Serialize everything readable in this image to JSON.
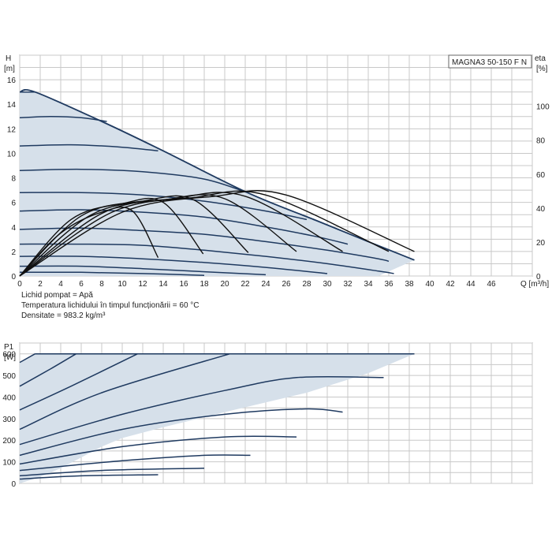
{
  "chart_data": [
    {
      "type": "line",
      "model_label": "MAGNA3 50-150 F N",
      "ylabel_lines": [
        "H",
        "[m]"
      ],
      "y2label_lines": [
        "eta",
        "[%]"
      ],
      "xlabel": "Q [m³/h]",
      "xlim": [
        0,
        50
      ],
      "ylim": [
        0,
        18
      ],
      "y2lim": [
        0,
        130
      ],
      "x_ticks": [
        0,
        2,
        4,
        6,
        8,
        10,
        12,
        14,
        16,
        18,
        20,
        22,
        24,
        26,
        28,
        30,
        32,
        34,
        36,
        38,
        40,
        42,
        44,
        46
      ],
      "y_ticks": [
        0,
        2,
        4,
        6,
        8,
        10,
        12,
        14,
        16
      ],
      "y2_ticks": [
        0,
        20,
        40,
        60,
        80,
        100
      ],
      "grid": true,
      "notes": [
        "Lichid pompat = Apă",
        "Temperatura lichidului în timpul funcționării = 60 °C",
        "Densitate = 983.2 kg/m³"
      ],
      "envelope": [
        [
          0,
          15
        ],
        [
          1.5,
          15
        ],
        [
          8,
          12.6
        ],
        [
          14,
          10.2
        ],
        [
          22.2,
          6.8
        ],
        [
          29,
          4.5
        ],
        [
          34,
          2.8
        ],
        [
          38.5,
          1.3
        ],
        [
          35,
          0
        ],
        [
          0,
          0
        ]
      ],
      "head_curves": [
        {
          "name": "H1",
          "points": [
            [
              0,
              15
            ],
            [
              1.5,
              15
            ]
          ]
        },
        {
          "name": "H2",
          "points": [
            [
              0,
              12.9
            ],
            [
              3,
              13
            ],
            [
              6,
              12.9
            ],
            [
              8.5,
              12.6
            ]
          ]
        },
        {
          "name": "H3",
          "points": [
            [
              0,
              10.6
            ],
            [
              5,
              10.7
            ],
            [
              10,
              10.5
            ],
            [
              13.5,
              10.2
            ]
          ]
        },
        {
          "name": "H4",
          "points": [
            [
              0,
              8.6
            ],
            [
              6,
              8.7
            ],
            [
              12,
              8.5
            ],
            [
              18,
              7.9
            ],
            [
              22.2,
              6.8
            ]
          ]
        },
        {
          "name": "H5",
          "points": [
            [
              0,
              6.8
            ],
            [
              6,
              6.8
            ],
            [
              12,
              6.6
            ],
            [
              18,
              6.1
            ],
            [
              24,
              5.3
            ],
            [
              28,
              4.6
            ]
          ]
        },
        {
          "name": "H6",
          "points": [
            [
              0,
              5.3
            ],
            [
              6,
              5.4
            ],
            [
              12,
              5.2
            ],
            [
              18,
              4.8
            ],
            [
              24,
              4
            ],
            [
              29,
              3.2
            ],
            [
              32,
              2.6
            ]
          ]
        },
        {
          "name": "H7",
          "points": [
            [
              0,
              3.8
            ],
            [
              6,
              3.9
            ],
            [
              12,
              3.7
            ],
            [
              18,
              3.4
            ],
            [
              24,
              2.8
            ],
            [
              30,
              2.1
            ],
            [
              35,
              1.4
            ],
            [
              36,
              1.2
            ]
          ]
        },
        {
          "name": "H8",
          "points": [
            [
              0,
              2.6
            ],
            [
              6,
              2.6
            ],
            [
              12,
              2.5
            ],
            [
              18,
              2.1
            ],
            [
              24,
              1.6
            ],
            [
              30,
              1
            ],
            [
              35,
              0.4
            ],
            [
              36.5,
              0.2
            ]
          ]
        },
        {
          "name": "H9",
          "points": [
            [
              0,
              1.6
            ],
            [
              6,
              1.6
            ],
            [
              12,
              1.4
            ],
            [
              18,
              1.1
            ],
            [
              24,
              0.7
            ],
            [
              30,
              0.2
            ]
          ]
        },
        {
          "name": "H10",
          "points": [
            [
              0,
              0.8
            ],
            [
              6,
              0.8
            ],
            [
              12,
              0.6
            ],
            [
              18,
              0.35
            ],
            [
              24,
              0.1
            ]
          ]
        },
        {
          "name": "H11",
          "points": [
            [
              0,
              0.3
            ],
            [
              6,
              0.3
            ],
            [
              12,
              0.2
            ],
            [
              18,
              0.05
            ]
          ]
        }
      ],
      "efficiency_curves": [
        {
          "name": "E1",
          "points": [
            [
              0,
              0
            ],
            [
              4,
              3.5
            ],
            [
              8,
              5.2
            ],
            [
              11,
              5.3
            ],
            [
              13.5,
              1.5
            ]
          ]
        },
        {
          "name": "E2",
          "points": [
            [
              0,
              0
            ],
            [
              5,
              4.6
            ],
            [
              10,
              5.9
            ],
            [
              14,
              6
            ],
            [
              17.9,
              1.8
            ]
          ]
        },
        {
          "name": "E3",
          "points": [
            [
              0,
              0
            ],
            [
              6,
              4.9
            ],
            [
              12,
              6.1
            ],
            [
              17,
              6.2
            ],
            [
              22.3,
              1.9
            ]
          ]
        },
        {
          "name": "E4",
          "points": [
            [
              0,
              0
            ],
            [
              7,
              5
            ],
            [
              14,
              6.2
            ],
            [
              20,
              6.3
            ],
            [
              27,
              2
            ]
          ]
        },
        {
          "name": "E5",
          "points": [
            [
              0,
              0
            ],
            [
              8,
              5.1
            ],
            [
              15,
              6.3
            ],
            [
              22,
              6.5
            ],
            [
              31.5,
              2
            ]
          ]
        },
        {
          "name": "E6",
          "points": [
            [
              0,
              0
            ],
            [
              9,
              5.2
            ],
            [
              17,
              6.4
            ],
            [
              24,
              6.6
            ],
            [
              36,
              2
            ]
          ]
        },
        {
          "name": "E7",
          "points": [
            [
              0,
              0
            ],
            [
              10,
              5.2
            ],
            [
              19,
              6.5
            ],
            [
              26,
              6.6
            ],
            [
              38.5,
              2
            ]
          ]
        }
      ]
    },
    {
      "type": "line",
      "ylabel_lines": [
        "P1",
        "[W]"
      ],
      "xlim": [
        0,
        50
      ],
      "ylim": [
        0,
        650
      ],
      "y_ticks": [
        0,
        100,
        200,
        300,
        400,
        500,
        600
      ],
      "grid": true,
      "envelope": [
        [
          0,
          560
        ],
        [
          1.5,
          600
        ],
        [
          38.5,
          600
        ],
        [
          34,
          510
        ],
        [
          28,
          420
        ],
        [
          20,
          330
        ],
        [
          14,
          260
        ],
        [
          10,
          210
        ],
        [
          8,
          170
        ],
        [
          6,
          120
        ],
        [
          4,
          70
        ],
        [
          2,
          30
        ],
        [
          0,
          0
        ]
      ],
      "power_curves": [
        {
          "name": "P1",
          "points": [
            [
              1.5,
              600
            ],
            [
              38.5,
              600
            ]
          ]
        },
        {
          "name": "P2",
          "points": [
            [
              0,
              560
            ],
            [
              1.5,
              600
            ]
          ]
        },
        {
          "name": "P3",
          "points": [
            [
              0,
              450
            ],
            [
              3,
              530
            ],
            [
              5.5,
              600
            ]
          ]
        },
        {
          "name": "P4",
          "points": [
            [
              0,
              340
            ],
            [
              5,
              450
            ],
            [
              11.5,
              600
            ]
          ]
        },
        {
          "name": "P5",
          "points": [
            [
              0,
              250
            ],
            [
              8,
              420
            ],
            [
              20.5,
              600
            ]
          ]
        },
        {
          "name": "P6",
          "points": [
            [
              0,
              180
            ],
            [
              10,
              320
            ],
            [
              20,
              430
            ],
            [
              27,
              490
            ],
            [
              35.5,
              490
            ]
          ]
        },
        {
          "name": "P7",
          "points": [
            [
              0,
              130
            ],
            [
              10,
              250
            ],
            [
              20,
              320
            ],
            [
              28,
              345
            ],
            [
              31.5,
              330
            ]
          ]
        },
        {
          "name": "P8",
          "points": [
            [
              0,
              90
            ],
            [
              10,
              170
            ],
            [
              20,
              215
            ],
            [
              27,
              215
            ]
          ]
        },
        {
          "name": "P9",
          "points": [
            [
              0,
              60
            ],
            [
              10,
              105
            ],
            [
              18,
              130
            ],
            [
              22.5,
              130
            ]
          ]
        },
        {
          "name": "P10",
          "points": [
            [
              0,
              35
            ],
            [
              8,
              60
            ],
            [
              18,
              70
            ]
          ]
        },
        {
          "name": "P11",
          "points": [
            [
              0,
              20
            ],
            [
              6,
              35
            ],
            [
              13.5,
              40
            ]
          ]
        }
      ]
    }
  ]
}
